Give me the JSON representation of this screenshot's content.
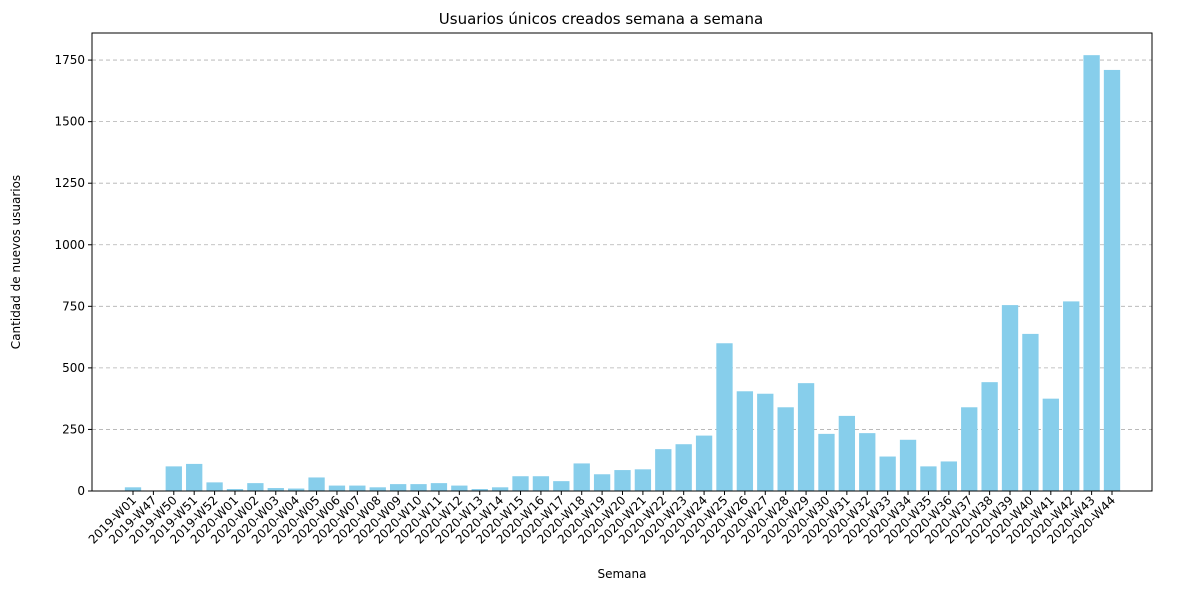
{
  "chart_data": {
    "type": "bar",
    "title": "Usuarios únicos creados semana a semana",
    "xlabel": "Semana",
    "ylabel": "Cantidad de nuevos usuarios",
    "ylim": [
      0,
      1860
    ],
    "yticks": [
      0,
      250,
      500,
      750,
      1000,
      1250,
      1500,
      1750
    ],
    "grid": "y-dashed",
    "color": "#87ceeb",
    "categories": [
      "2019-W01",
      "2019-W47",
      "2019-W50",
      "2019-W51",
      "2019-W52",
      "2020-W01",
      "2020-W02",
      "2020-W03",
      "2020-W04",
      "2020-W05",
      "2020-W06",
      "2020-W07",
      "2020-W08",
      "2020-W09",
      "2020-W10",
      "2020-W11",
      "2020-W12",
      "2020-W13",
      "2020-W14",
      "2020-W15",
      "2020-W16",
      "2020-W17",
      "2020-W18",
      "2020-W19",
      "2020-W20",
      "2020-W21",
      "2020-W22",
      "2020-W23",
      "2020-W24",
      "2020-W25",
      "2020-W26",
      "2020-W27",
      "2020-W28",
      "2020-W29",
      "2020-W30",
      "2020-W31",
      "2020-W32",
      "2020-W33",
      "2020-W34",
      "2020-W35",
      "2020-W36",
      "2020-W37",
      "2020-W38",
      "2020-W39",
      "2020-W40",
      "2020-W41",
      "2020-W42",
      "2020-W43",
      "2020-W44"
    ],
    "values": [
      15,
      2,
      100,
      110,
      35,
      8,
      32,
      12,
      10,
      55,
      22,
      22,
      15,
      28,
      28,
      32,
      22,
      8,
      15,
      60,
      60,
      40,
      112,
      68,
      85,
      88,
      170,
      190,
      225,
      600,
      405,
      395,
      340,
      438,
      232,
      305,
      235,
      140,
      208,
      100,
      120,
      340,
      442,
      755,
      638,
      375,
      770,
      1770,
      1710
    ]
  }
}
